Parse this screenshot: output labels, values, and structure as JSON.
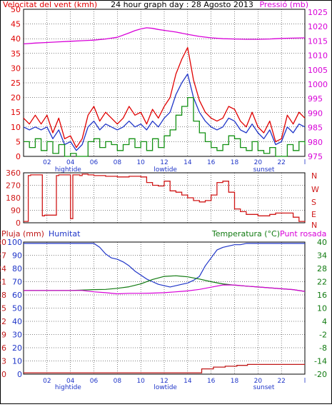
{
  "colors": {
    "frame": "#000000",
    "grid": "#000000",
    "wind_avg": "#1f35c8",
    "wind_gust": "#e00000",
    "wind_min": "#129012",
    "pressure": "#d800d8",
    "direction": "#d01818",
    "rain": "#c01818",
    "humidity": "#1f35c8",
    "temperature": "#107a10",
    "dew_point": "#d800d8",
    "tide_label": "#1f35c8"
  },
  "chart_data": [
    {
      "id": "wind-pressure",
      "type": "line",
      "title": "24 hour graph day : 28 Agosto 2013",
      "left_axis_title": "Velocitat del vent (kmh)",
      "right_axis_title": "Pressió (mb)",
      "x_tick_labels": [
        "02",
        "04",
        "06",
        "08",
        "10",
        "12",
        "14",
        "16",
        "18",
        "20",
        "22",
        "l"
      ],
      "x_marker_labels": [
        {
          "text": "hightide",
          "x": 3.8
        },
        {
          "text": "lowtide",
          "x": 12.1
        },
        {
          "text": "sunset",
          "x": 20.5
        }
      ],
      "xlim": [
        0,
        24
      ],
      "ylim_left": [
        0,
        50
      ],
      "left_ticks": [
        0,
        5,
        10,
        15,
        20,
        25,
        30,
        35,
        40,
        45,
        50
      ],
      "ylim_right": [
        975,
        1026
      ],
      "right_ticks": [
        975,
        980,
        985,
        990,
        995,
        1000,
        1005,
        1010,
        1015,
        1020,
        1025
      ],
      "grid": true,
      "series": [
        {
          "key": "gust",
          "color_key": "wind_gust",
          "axis": "left",
          "x": [
            0,
            0.5,
            1,
            1.5,
            2,
            2.5,
            3,
            3.5,
            4,
            4.5,
            5,
            5.5,
            6,
            6.5,
            7,
            7.5,
            8,
            8.5,
            9,
            9.5,
            10,
            10.5,
            11,
            11.5,
            12,
            12.5,
            13,
            13.5,
            14,
            14.5,
            15,
            15.5,
            16,
            16.5,
            17,
            17.5,
            18,
            18.5,
            19,
            19.5,
            20,
            20.5,
            21,
            21.5,
            22,
            22.5,
            23,
            23.5,
            24
          ],
          "y": [
            13,
            11,
            14,
            11,
            14,
            8,
            13,
            6,
            7,
            3,
            6,
            14,
            17,
            12,
            15,
            13,
            11,
            13,
            17,
            14,
            15,
            11,
            16,
            13,
            17,
            20,
            28,
            33,
            37,
            26,
            19,
            15,
            13,
            12,
            13,
            17,
            16,
            12,
            10,
            15,
            10,
            8,
            12,
            5,
            6,
            14,
            11,
            15,
            13
          ]
        },
        {
          "key": "avg",
          "color_key": "wind_avg",
          "axis": "left",
          "x": [
            0,
            0.5,
            1,
            1.5,
            2,
            2.5,
            3,
            3.5,
            4,
            4.5,
            5,
            5.5,
            6,
            6.5,
            7,
            7.5,
            8,
            8.5,
            9,
            9.5,
            10,
            10.5,
            11,
            11.5,
            12,
            12.5,
            13,
            13.5,
            14,
            14.5,
            15,
            15.5,
            16,
            16.5,
            17,
            17.5,
            18,
            18.5,
            19,
            19.5,
            20,
            20.5,
            21,
            21.5,
            22,
            22.5,
            23,
            23.5,
            24
          ],
          "y": [
            10,
            9,
            10,
            9,
            10,
            6,
            9,
            4,
            5,
            2,
            4,
            10,
            12,
            9,
            11,
            10,
            9,
            10,
            12,
            10,
            11,
            9,
            12,
            10,
            13,
            15,
            21,
            25,
            28,
            20,
            15,
            12,
            10,
            9,
            10,
            13,
            12,
            9,
            8,
            11,
            8,
            6,
            9,
            4,
            5,
            10,
            8,
            11,
            10
          ]
        },
        {
          "key": "min",
          "color_key": "wind_min",
          "axis": "left",
          "x": [
            0,
            0.5,
            1,
            1.5,
            2,
            2.5,
            3,
            3.5,
            4,
            4.5,
            5,
            5.5,
            6,
            6.5,
            7,
            7.5,
            8,
            8.5,
            9,
            9.5,
            10,
            10.5,
            11,
            11.5,
            12,
            12.5,
            13,
            13.5,
            14,
            14.5,
            15,
            15.5,
            16,
            16.5,
            17,
            17.5,
            18,
            18.5,
            19,
            19.5,
            20,
            20.5,
            21,
            21.5,
            22,
            22.5,
            23,
            23.5,
            24
          ],
          "y": [
            5,
            3,
            6,
            2,
            5,
            1,
            4,
            0,
            1,
            0,
            0,
            5,
            6,
            3,
            5,
            4,
            2,
            4,
            6,
            3,
            5,
            2,
            6,
            3,
            7,
            9,
            14,
            17,
            20,
            12,
            8,
            5,
            3,
            2,
            4,
            7,
            6,
            3,
            2,
            5,
            2,
            1,
            3,
            0,
            0,
            4,
            2,
            5,
            4
          ]
        },
        {
          "key": "pressure",
          "color_key": "pressure",
          "axis": "right",
          "x": [
            0,
            1,
            2,
            3,
            4,
            5,
            6,
            7,
            8,
            9,
            9.5,
            10,
            10.5,
            11,
            11.5,
            12,
            13,
            14,
            15,
            16,
            17,
            18,
            19,
            20,
            21,
            22,
            23,
            24
          ],
          "y": [
            1014.0,
            1014.3,
            1014.5,
            1014.7,
            1014.9,
            1015.1,
            1015.3,
            1015.7,
            1016.3,
            1017.8,
            1018.6,
            1019.2,
            1019.6,
            1019.4,
            1019.0,
            1018.7,
            1018.1,
            1017.3,
            1016.6,
            1016.1,
            1015.8,
            1015.7,
            1015.6,
            1015.6,
            1015.7,
            1015.9,
            1016.0,
            1016.1
          ]
        }
      ]
    },
    {
      "id": "wind-direction",
      "type": "line",
      "xlim": [
        0,
        24
      ],
      "ylim_left": [
        0,
        360
      ],
      "left_ticks": [
        0,
        90,
        180,
        270,
        360
      ],
      "right_ticks_text": [
        "N",
        "E",
        "S",
        "W",
        "N"
      ],
      "grid": true,
      "x_tick_labels": [],
      "series": [
        {
          "key": "dir",
          "color_key": "direction",
          "axis": "left",
          "x": [
            0,
            0.2,
            0.4,
            0.6,
            1,
            1.6,
            1.8,
            2.4,
            2.8,
            3.0,
            3.4,
            4.0,
            4.2,
            4.8,
            5.0,
            5.5,
            6,
            7,
            8,
            9,
            10,
            10.5,
            11,
            11.5,
            12,
            12.5,
            13,
            13.5,
            14,
            14.5,
            15,
            15.5,
            16,
            16.5,
            17,
            17.5,
            18,
            18.5,
            19,
            20,
            21,
            21.5,
            22,
            23,
            23.5,
            24
          ],
          "y": [
            10,
            10,
            340,
            345,
            345,
            50,
            55,
            55,
            340,
            345,
            345,
            30,
            345,
            340,
            350,
            345,
            340,
            335,
            330,
            335,
            330,
            290,
            270,
            265,
            300,
            230,
            220,
            200,
            180,
            160,
            150,
            160,
            200,
            290,
            300,
            220,
            100,
            80,
            60,
            50,
            60,
            70,
            70,
            40,
            10,
            5
          ]
        }
      ]
    },
    {
      "id": "humidity-temp-rain",
      "type": "line",
      "left_axis_title": "Pluja (mm)",
      "humidity_title": "Humitat",
      "right_axis_title": "Temperatura (°C)",
      "right_axis_title2": "Punt rosada",
      "x_tick_labels": [
        "02",
        "04",
        "06",
        "08",
        "10",
        "12",
        "14",
        "16",
        "18",
        "20",
        "22",
        "l"
      ],
      "x_marker_labels": [
        {
          "text": "hightide",
          "x": 3.8
        },
        {
          "text": "lowtide",
          "x": 12.1
        },
        {
          "text": "sunset",
          "x": 20.5
        }
      ],
      "xlim": [
        0,
        24
      ],
      "ylim_rain": [
        0,
        30
      ],
      "rain_ticks": [
        0,
        3,
        6,
        9,
        12,
        15,
        18,
        21,
        24,
        27,
        30
      ],
      "ylim_humidity": [
        0,
        100
      ],
      "humidity_ticks": [
        0,
        10,
        20,
        30,
        40,
        50,
        60,
        70,
        80,
        90,
        100
      ],
      "ylim_right": [
        -20,
        40
      ],
      "right_ticks": [
        -20,
        -14,
        -8,
        -2,
        4,
        10,
        16,
        22,
        28,
        34,
        40
      ],
      "grid": true,
      "series": [
        {
          "key": "humidity",
          "color_key": "humidity",
          "axis": "humidity",
          "x": [
            0,
            1,
            2,
            3,
            4,
            5,
            6,
            6.5,
            7,
            7.5,
            8,
            8.5,
            9,
            9.5,
            10,
            10.5,
            11,
            11.5,
            12,
            12.5,
            13,
            13.5,
            14,
            14.5,
            15,
            15.5,
            16,
            16.5,
            17,
            17.5,
            18,
            18.5,
            19,
            20,
            21,
            22,
            23,
            24
          ],
          "y": [
            99,
            99,
            99,
            99,
            99,
            99,
            99,
            96,
            91,
            88,
            87,
            85,
            82,
            78,
            75,
            72,
            70,
            68,
            67,
            66,
            67,
            68,
            69,
            71,
            74,
            82,
            88,
            94,
            96,
            97,
            98,
            98,
            99,
            99,
            99,
            99,
            99,
            99
          ]
        },
        {
          "key": "temperature",
          "color_key": "temperature",
          "axis": "right",
          "x": [
            0,
            1,
            2,
            3,
            4,
            5,
            6,
            7,
            8,
            9,
            10,
            11,
            12,
            13,
            14,
            15,
            16,
            17,
            18,
            19,
            20,
            21,
            22,
            23,
            24
          ],
          "y": [
            18.0,
            18.0,
            18.0,
            18.0,
            18.0,
            18.2,
            18.4,
            18.5,
            19.0,
            19.7,
            21.0,
            23.0,
            24.4,
            24.7,
            24.2,
            23.2,
            22.0,
            21.0,
            20.4,
            20.0,
            19.6,
            19.2,
            18.8,
            18.4,
            17.6
          ]
        },
        {
          "key": "dewpoint",
          "color_key": "dew_point",
          "axis": "right",
          "x": [
            0,
            1,
            2,
            3,
            4,
            5,
            6,
            7,
            8,
            9,
            10,
            11,
            12,
            13,
            14,
            15,
            16,
            17,
            18,
            19,
            20,
            21,
            22,
            23,
            24
          ],
          "y": [
            18.0,
            18.0,
            18.0,
            18.0,
            18.0,
            18.0,
            17.4,
            17.0,
            16.5,
            16.7,
            16.7,
            16.8,
            17.0,
            17.4,
            17.8,
            18.5,
            19.5,
            20.5,
            20.5,
            20.0,
            19.6,
            19.2,
            18.8,
            18.4,
            17.6
          ]
        },
        {
          "key": "rain",
          "color_key": "rain",
          "axis": "rain",
          "x": [
            0,
            15.1,
            15.2,
            16.1,
            16.2,
            17.1,
            17.2,
            18.1,
            18.2,
            19,
            19.1,
            24
          ],
          "y": [
            0.3,
            0.3,
            1.2,
            1.2,
            1.6,
            1.6,
            1.8,
            1.8,
            2.0,
            2.0,
            2.2,
            2.2
          ]
        }
      ]
    }
  ]
}
